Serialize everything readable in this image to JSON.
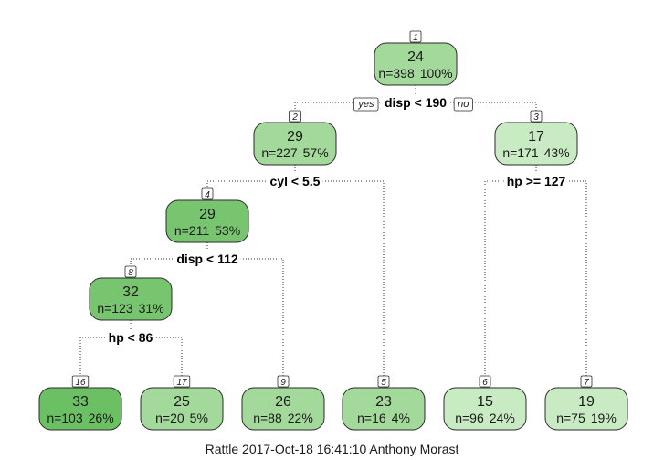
{
  "caption": "Rattle 2017-Oct-18 16:41:10 Anthony Morast",
  "branch_labels": {
    "yes": "yes",
    "no": "no"
  },
  "nodes": [
    {
      "id": "1",
      "value": "24",
      "n": "n=398",
      "pct": "100%",
      "color": "#a3d99a"
    },
    {
      "id": "2",
      "value": "29",
      "n": "n=227",
      "pct": "57%",
      "color": "#a3d99a"
    },
    {
      "id": "3",
      "value": "17",
      "n": "n=171",
      "pct": "43%",
      "color": "#c9ebc3"
    },
    {
      "id": "4",
      "value": "29",
      "n": "n=211",
      "pct": "53%",
      "color": "#78c56f"
    },
    {
      "id": "8",
      "value": "32",
      "n": "n=123",
      "pct": "31%",
      "color": "#78c56f"
    },
    {
      "id": "16",
      "value": "33",
      "n": "n=103",
      "pct": "26%",
      "color": "#6cc064"
    },
    {
      "id": "17",
      "value": "25",
      "n": "n=20",
      "pct": "5%",
      "color": "#a3d99a"
    },
    {
      "id": "9",
      "value": "26",
      "n": "n=88",
      "pct": "22%",
      "color": "#a3d99a"
    },
    {
      "id": "5",
      "value": "23",
      "n": "n=16",
      "pct": "4%",
      "color": "#a3d99a"
    },
    {
      "id": "6",
      "value": "15",
      "n": "n=96",
      "pct": "24%",
      "color": "#c9ebc3"
    },
    {
      "id": "7",
      "value": "19",
      "n": "n=75",
      "pct": "19%",
      "color": "#c9ebc3"
    }
  ],
  "splits": [
    {
      "node": "1",
      "label": "disp < 190"
    },
    {
      "node": "2",
      "label": "cyl < 5.5"
    },
    {
      "node": "3",
      "label": "hp >= 127"
    },
    {
      "node": "4",
      "label": "disp < 112"
    },
    {
      "node": "8",
      "label": "hp < 86"
    }
  ]
}
